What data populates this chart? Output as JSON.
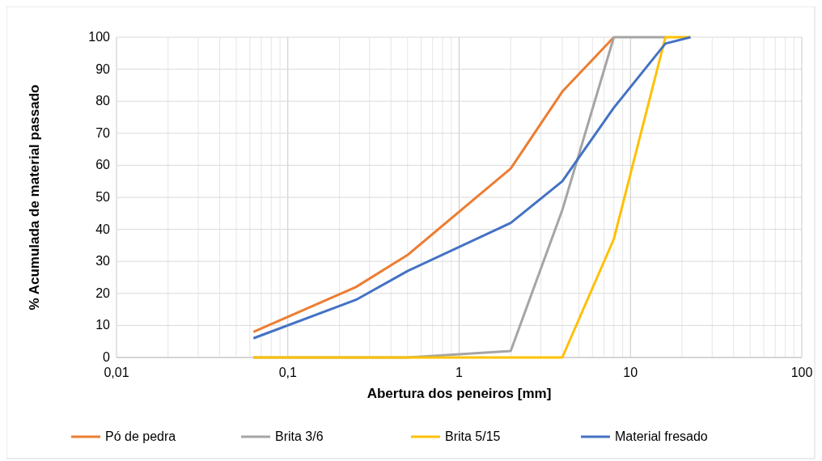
{
  "chart_data": {
    "type": "line",
    "xlabel": "Abertura dos peneiros [mm]",
    "ylabel": "% Acumulada de material passado",
    "log": "x",
    "grid": true,
    "legend": "bottom",
    "marker": "none",
    "line_style": "solid",
    "xlim": [
      0.01,
      100
    ],
    "xticks": [
      {
        "value": 0.01,
        "label": "0,01"
      },
      {
        "value": 0.1,
        "label": "0,1"
      },
      1,
      10,
      100
    ],
    "ylim": [
      0,
      100
    ],
    "yticks": [
      0,
      10,
      20,
      30,
      40,
      50,
      60,
      70,
      80,
      90,
      100
    ],
    "series": [
      {
        "name": "Pó de pedra",
        "color": "#ed7d31",
        "x": [
          0.063,
          0.25,
          0.5,
          2,
          4,
          8
        ],
        "values": [
          8,
          22,
          32,
          59,
          83,
          100
        ]
      },
      {
        "name": "Brita 3/6",
        "color": "#a5a5a5",
        "x": [
          0.063,
          0.25,
          0.5,
          2,
          4,
          8,
          16
        ],
        "values": [
          0,
          0,
          0,
          2,
          46,
          100,
          100
        ]
      },
      {
        "name": "Brita 5/15",
        "color": "#ffc000",
        "x": [
          0.063,
          0.25,
          0.5,
          2,
          4,
          8,
          16,
          22.4
        ],
        "values": [
          0,
          0,
          0,
          0,
          0,
          37,
          100,
          100
        ]
      },
      {
        "name": "Material fresado",
        "color": "#4472c4",
        "x": [
          0.063,
          0.25,
          0.5,
          2,
          4,
          8,
          16,
          22.4
        ],
        "values": [
          6,
          18,
          27,
          42,
          55,
          78,
          98,
          100
        ]
      }
    ]
  }
}
